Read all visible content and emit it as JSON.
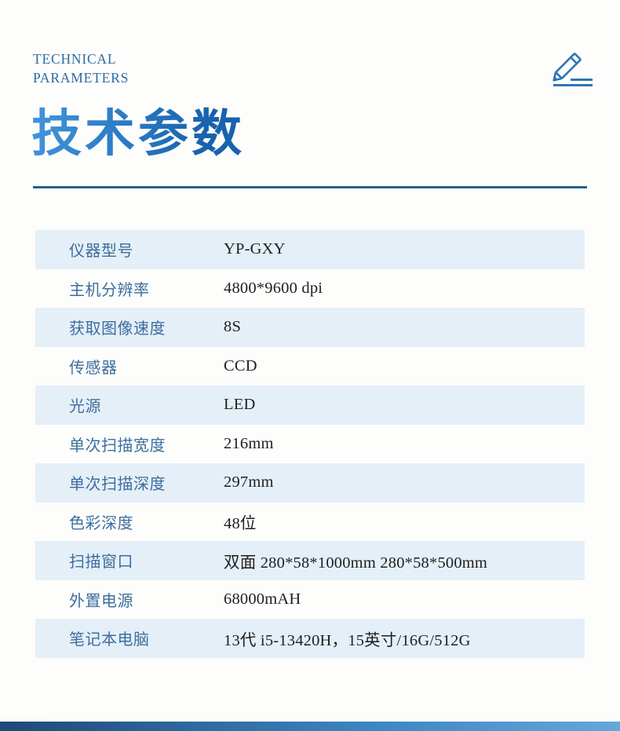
{
  "header": {
    "eyebrow_line1": "TECHNICAL",
    "eyebrow_line2": "PARAMETERS",
    "title": "技术参数"
  },
  "icons": {
    "pencil": "pencil-writing-icon"
  },
  "colors": {
    "page_bg": "#fdfdfb",
    "eyebrow_text": "#2d6ba3",
    "title_gradient_start": "#4396dc",
    "title_gradient_end": "#1863ae",
    "divider": "#26608f",
    "row_tint": "#e5eff8",
    "label_text": "#3c6e9e",
    "value_text": "#1f1f1f",
    "icon_stroke": "#2e75b6",
    "footer_gradient_start": "#1d4a77",
    "footer_gradient_end": "#66a7da"
  },
  "table": {
    "rows": [
      {
        "label": "仪器型号",
        "value": "YP-GXY"
      },
      {
        "label": "主机分辨率",
        "value": "4800*9600 dpi"
      },
      {
        "label": "获取图像速度",
        "value": "8S"
      },
      {
        "label": "传感器",
        "value": "CCD"
      },
      {
        "label": "光源",
        "value": "LED"
      },
      {
        "label": "单次扫描宽度",
        "value": "216mm"
      },
      {
        "label": "单次扫描深度",
        "value": "297mm"
      },
      {
        "label": "色彩深度",
        "value": "48位"
      },
      {
        "label": "扫描窗口",
        "value": "双面 280*58*1000mm 280*58*500mm"
      },
      {
        "label": "外置电源",
        "value": "68000mAH"
      },
      {
        "label": "笔记本电脑",
        "value": "13代 i5-13420H，15英寸/16G/512G"
      }
    ]
  }
}
